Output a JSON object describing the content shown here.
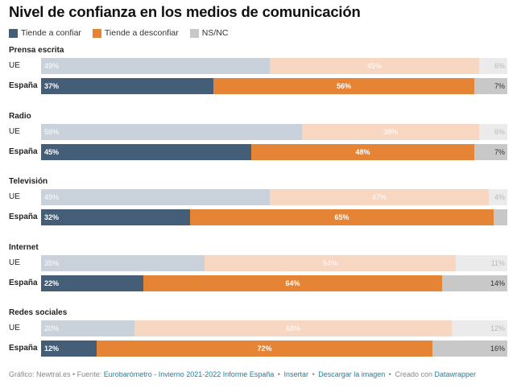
{
  "title": "Nivel de confianza en los medios de comunicación",
  "legend": [
    {
      "label": "Tiende a confiar",
      "color": "#445e78"
    },
    {
      "label": "Tiende a desconfiar",
      "color": "#e68436"
    },
    {
      "label": "NS/NC",
      "color": "#c8c8c8"
    }
  ],
  "chart_data": {
    "type": "bar",
    "stacked": true,
    "title": "Nivel de confianza en los medios de comunicación",
    "series_names": [
      "Tiende a confiar",
      "Tiende a desconfiar",
      "NS/NC"
    ],
    "colors_strong": [
      "#445e78",
      "#e68436",
      "#c8c8c8"
    ],
    "colors_light": [
      "#c9d1da",
      "#f7d6c2",
      "#ebebeb"
    ],
    "text_light": [
      "#ffffff",
      "#ffffff",
      "#b9b9b9"
    ],
    "groups": [
      {
        "name": "Prensa escrita",
        "rows": [
          {
            "label": "UE",
            "values": [
              49,
              45,
              6
            ],
            "labels": [
              "49%",
              "45%",
              "6%"
            ]
          },
          {
            "label": "España",
            "values": [
              37,
              56,
              7
            ],
            "labels": [
              "37%",
              "56%",
              "7%"
            ]
          }
        ]
      },
      {
        "name": "Radio",
        "rows": [
          {
            "label": "UE",
            "values": [
              56,
              38,
              6
            ],
            "labels": [
              "56%",
              "38%",
              "6%"
            ]
          },
          {
            "label": "España",
            "values": [
              45,
              48,
              7
            ],
            "labels": [
              "45%",
              "48%",
              "7%"
            ]
          }
        ]
      },
      {
        "name": "Televisión",
        "rows": [
          {
            "label": "UE",
            "values": [
              49,
              47,
              4
            ],
            "labels": [
              "49%",
              "47%",
              "4%"
            ]
          },
          {
            "label": "España",
            "values": [
              32,
              65,
              3
            ],
            "labels": [
              "32%",
              "65%",
              ""
            ]
          }
        ]
      },
      {
        "name": "Internet",
        "rows": [
          {
            "label": "UE",
            "values": [
              35,
              54,
              11
            ],
            "labels": [
              "35%",
              "54%",
              "11%"
            ]
          },
          {
            "label": "España",
            "values": [
              22,
              64,
              14
            ],
            "labels": [
              "22%",
              "64%",
              "14%"
            ]
          }
        ]
      },
      {
        "name": "Redes sociales",
        "rows": [
          {
            "label": "UE",
            "values": [
              20,
              68,
              12
            ],
            "labels": [
              "20%",
              "68%",
              "12%"
            ]
          },
          {
            "label": "España",
            "values": [
              12,
              72,
              16
            ],
            "labels": [
              "12%",
              "72%",
              "16%"
            ]
          }
        ]
      }
    ]
  },
  "footer": {
    "prefix": "Gráfico: Newtral.es • Fuente:",
    "source": "Eurobarómetro - Invierno 2021-2022 Informe España",
    "insert": "Insertar",
    "download": "Descargar la imagen",
    "created": "Creado con",
    "tool": "Datawrapper",
    "bullet": "•"
  }
}
